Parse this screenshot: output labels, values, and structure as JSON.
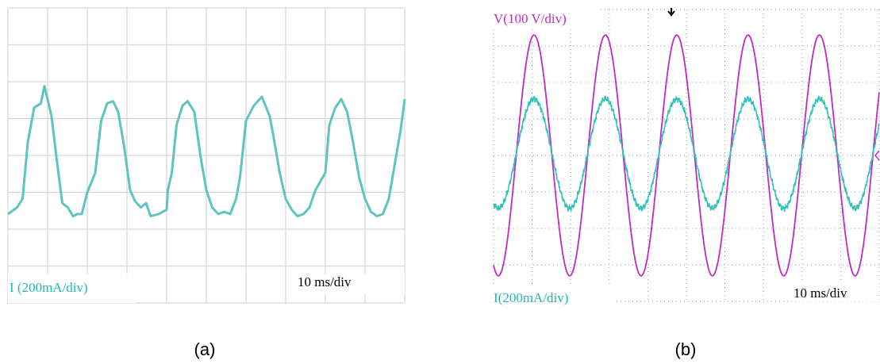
{
  "figure": {
    "panels": [
      {
        "id": "a",
        "caption": "(a)",
        "labels": {
          "current": "I (200mA/div)",
          "time": "10 ms/div"
        }
      },
      {
        "id": "b",
        "caption": "(b)",
        "labels": {
          "voltage": "V(100 V/div)",
          "current": "I(200mA/div)",
          "time": "10 ms/div"
        }
      }
    ]
  },
  "chart_data": [
    {
      "type": "line",
      "panel": "a",
      "scale": {
        "x_per_div": "10 ms",
        "current_per_div": "200mA"
      },
      "grid": true,
      "xlim_div": [
        0,
        10
      ],
      "ylim_div": [
        -3.4,
        3.4
      ],
      "series": [
        {
          "name": "I (200mA/div)",
          "color": "#5fc3c0",
          "x_div": [
            0.0,
            0.23,
            0.37,
            0.5,
            0.66,
            0.83,
            0.92,
            1.1,
            1.23,
            1.3,
            1.37,
            1.51,
            1.64,
            1.75,
            1.86,
            2.0,
            2.2,
            2.35,
            2.5,
            2.65,
            2.78,
            2.93,
            3.08,
            3.2,
            3.35,
            3.48,
            3.6,
            3.8,
            4.0,
            4.03,
            4.13,
            4.25,
            4.4,
            4.53,
            4.7,
            4.85,
            5.0,
            5.15,
            5.3,
            5.45,
            5.6,
            5.75,
            5.85,
            6.0,
            6.2,
            6.4,
            6.6,
            6.7,
            6.85,
            7.0,
            7.15,
            7.3,
            7.45,
            7.6,
            7.75,
            8.0,
            8.1,
            8.25,
            8.4,
            8.55,
            8.7,
            8.85,
            9.0,
            9.15,
            9.3,
            9.45,
            9.6,
            9.75,
            9.9,
            10.0
          ],
          "y_div": [
            -1.35,
            -1.2,
            -1.0,
            0.3,
            1.1,
            1.2,
            1.6,
            0.9,
            -0.1,
            -0.6,
            -1.1,
            -1.2,
            -1.4,
            -1.35,
            -1.35,
            -0.85,
            -0.4,
            0.8,
            1.2,
            1.25,
            1.0,
            0.2,
            -0.8,
            -1.05,
            -1.2,
            -1.1,
            -1.4,
            -1.35,
            -1.25,
            -0.8,
            -0.4,
            0.7,
            1.15,
            1.25,
            1.0,
            0.0,
            -0.8,
            -1.2,
            -1.35,
            -1.3,
            -1.35,
            -1.0,
            -0.5,
            0.8,
            1.15,
            1.35,
            0.9,
            0.4,
            -0.4,
            -1.0,
            -1.25,
            -1.4,
            -1.35,
            -1.2,
            -0.8,
            -0.4,
            0.7,
            1.1,
            1.3,
            1.0,
            0.3,
            -0.5,
            -1.0,
            -1.3,
            -1.4,
            -1.35,
            -1.0,
            -0.2,
            0.6,
            1.3
          ]
        }
      ]
    },
    {
      "type": "line",
      "panel": "b",
      "scale": {
        "x_per_div": "10 ms",
        "voltage_per_div": "100 V",
        "current_per_div": "200mA"
      },
      "grid": true,
      "xlim_div": [
        0,
        10
      ],
      "ylim_div": [
        -4,
        4
      ],
      "series": [
        {
          "name": "V(100 V/div)",
          "color": "#c02cc0",
          "waveform": "sine",
          "amplitude_div": 3.3,
          "period_div": 1.85,
          "first_peak_div": 1.05
        },
        {
          "name": "I(200mA/div)",
          "color": "#2fc0b8",
          "waveform": "sine",
          "amplitude_div": 1.5,
          "period_div": 1.85,
          "first_peak_div": 1.05,
          "offset_div": 0.05
        }
      ]
    }
  ]
}
